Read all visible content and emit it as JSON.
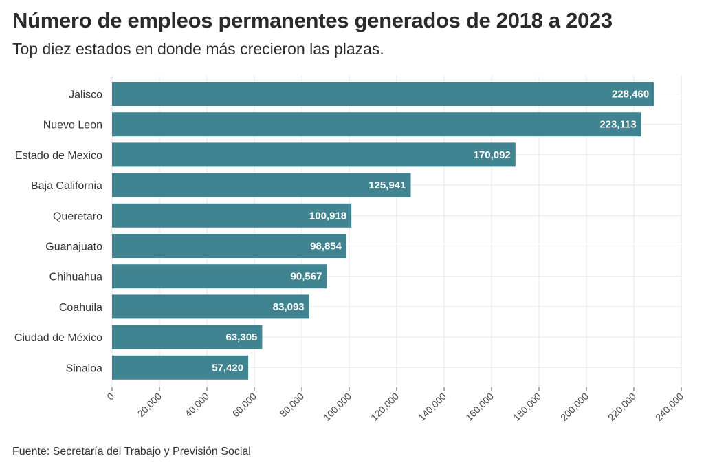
{
  "title": "Número de empleos permanentes generados de 2018 a 2023",
  "subtitle": "Top diez estados en donde más crecieron las plazas.",
  "source": "Fuente: Secretaría del Trabajo y Previsión Social",
  "colors": {
    "bar": "#3f8490",
    "grid": "#e6e6e6",
    "axis": "#555555"
  },
  "chart_data": {
    "type": "bar",
    "orientation": "horizontal",
    "title": "Número de empleos permanentes generados de 2018 a 2023",
    "subtitle": "Top diez estados en donde más crecieron las plazas.",
    "categories": [
      "Jalisco",
      "Nuevo Leon",
      "Estado de Mexico",
      "Baja California",
      "Queretaro",
      "Guanajuato",
      "Chihuahua",
      "Coahuila",
      "Ciudad de México",
      "Sinaloa"
    ],
    "values": [
      228460,
      223113,
      170092,
      125941,
      100918,
      98854,
      90567,
      83093,
      63305,
      57420
    ],
    "value_labels": [
      "228,460",
      "223,113",
      "170,092",
      "125,941",
      "100,918",
      "98,854",
      "90,567",
      "83,093",
      "63,305",
      "57,420"
    ],
    "xlim": [
      0,
      240000
    ],
    "x_ticks": [
      0,
      20000,
      40000,
      60000,
      80000,
      100000,
      120000,
      140000,
      160000,
      180000,
      200000,
      220000,
      240000
    ],
    "x_tick_labels": [
      "0",
      "20,000",
      "40,000",
      "60,000",
      "80,000",
      "100,000",
      "120,000",
      "140,000",
      "160,000",
      "180,000",
      "200,000",
      "220,000",
      "240,000"
    ],
    "grid": true,
    "legend": "none"
  }
}
